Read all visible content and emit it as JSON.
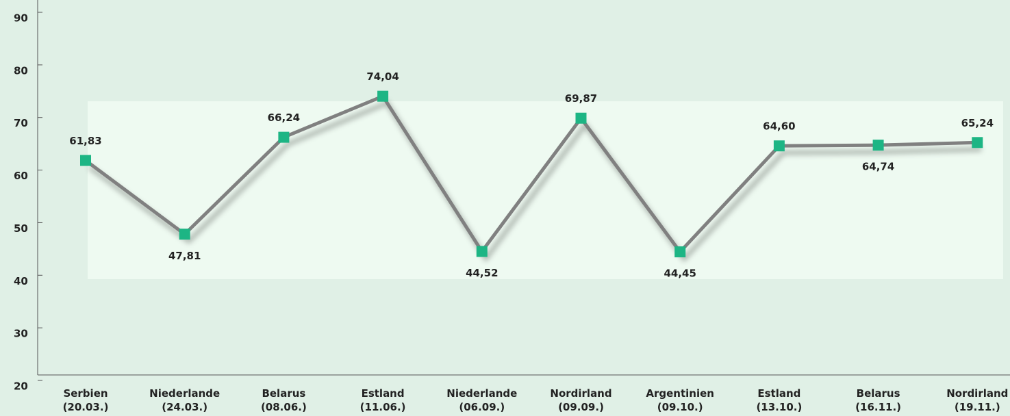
{
  "chart_data": {
    "type": "line",
    "categories": [
      "Serbien\n(20.03.)",
      "Niederlande\n(24.03.)",
      "Belarus\n(08.06.)",
      "Estland\n(11.06.)",
      "Niederlande\n(06.09.)",
      "Nordirland\n(09.09.)",
      "Argentinien\n(09.10.)",
      "Estland\n(13.10.)",
      "Belarus\n(16.11.)",
      "Nordirland\n(19.11.)"
    ],
    "series": [
      {
        "name": null,
        "color": "#808080",
        "marker_color": "#1db584",
        "values": [
          61.83,
          47.81,
          66.24,
          74.04,
          44.52,
          69.87,
          44.45,
          64.6,
          64.74,
          65.24
        ],
        "value_labels": [
          "61,83",
          "47,81",
          "66,24",
          "74,04",
          "44,52",
          "69,87",
          "44,45",
          "64,60",
          "64,74",
          "65,24"
        ]
      }
    ],
    "ylim": [
      20,
      90
    ],
    "yticks": [
      20,
      30,
      40,
      50,
      60,
      70,
      80,
      90
    ]
  }
}
